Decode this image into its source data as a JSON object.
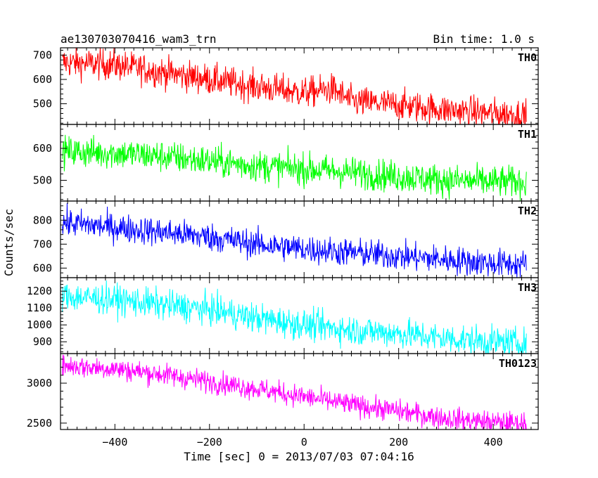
{
  "chart_data": {
    "type": "line",
    "title_left": "ae130703070416_wam3_trn",
    "title_right": "Bin time: 1.0 s",
    "xlabel": "Time [sec] 0 = 2013/07/03 07:04:16",
    "ylabel": "Counts/sec",
    "x_range": [
      -511,
      470
    ],
    "xlim": [
      -515,
      495
    ],
    "x_ticks": [
      -400,
      -200,
      0,
      200,
      400
    ],
    "x_tick_labels": [
      "−400",
      "−200",
      "0",
      "200",
      "400"
    ],
    "bin_time_s": 1.0,
    "panels": [
      {
        "name": "TH0",
        "color": "#ff0000",
        "ylim": [
          415,
          730
        ],
        "y_ticks": [
          500,
          600,
          700
        ],
        "trend": [
          [
            -511,
            670
          ],
          [
            -400,
            660
          ],
          [
            -300,
            630
          ],
          [
            -200,
            600
          ],
          [
            -100,
            570
          ],
          [
            0,
            545
          ],
          [
            60,
            560
          ],
          [
            100,
            510
          ],
          [
            200,
            495
          ],
          [
            300,
            475
          ],
          [
            400,
            460
          ],
          [
            470,
            455
          ]
        ],
        "noise": 32
      },
      {
        "name": "TH1",
        "color": "#00ff00",
        "ylim": [
          435,
          675
        ],
        "y_ticks": [
          500,
          600
        ],
        "trend": [
          [
            -511,
            590
          ],
          [
            -400,
            585
          ],
          [
            -300,
            575
          ],
          [
            -200,
            560
          ],
          [
            -100,
            545
          ],
          [
            0,
            535
          ],
          [
            100,
            525
          ],
          [
            200,
            512
          ],
          [
            300,
            500
          ],
          [
            400,
            495
          ],
          [
            470,
            495
          ]
        ],
        "noise": 25
      },
      {
        "name": "TH2",
        "color": "#0000ff",
        "ylim": [
          560,
          880
        ],
        "y_ticks": [
          600,
          700,
          800
        ],
        "trend": [
          [
            -511,
            790
          ],
          [
            -400,
            770
          ],
          [
            -300,
            750
          ],
          [
            -200,
            730
          ],
          [
            -100,
            700
          ],
          [
            0,
            680
          ],
          [
            100,
            665
          ],
          [
            200,
            650
          ],
          [
            300,
            635
          ],
          [
            400,
            620
          ],
          [
            470,
            615
          ]
        ],
        "noise": 30
      },
      {
        "name": "TH3",
        "color": "#00ffff",
        "ylim": [
          830,
          1280
        ],
        "y_ticks": [
          900,
          1000,
          1100,
          1200
        ],
        "trend": [
          [
            -511,
            1170
          ],
          [
            -400,
            1150
          ],
          [
            -300,
            1120
          ],
          [
            -200,
            1090
          ],
          [
            -100,
            1040
          ],
          [
            0,
            1000
          ],
          [
            100,
            970
          ],
          [
            200,
            950
          ],
          [
            300,
            920
          ],
          [
            400,
            900
          ],
          [
            470,
            890
          ]
        ],
        "noise": 45
      },
      {
        "name": "TH0123",
        "color": "#ff00ff",
        "ylim": [
          2420,
          3370
        ],
        "y_ticks": [
          2500,
          3000
        ],
        "trend": [
          [
            -511,
            3220
          ],
          [
            -400,
            3180
          ],
          [
            -300,
            3110
          ],
          [
            -200,
            3020
          ],
          [
            -100,
            2930
          ],
          [
            0,
            2830
          ],
          [
            100,
            2730
          ],
          [
            200,
            2650
          ],
          [
            300,
            2560
          ],
          [
            400,
            2510
          ],
          [
            470,
            2500
          ]
        ],
        "noise": 70
      }
    ]
  }
}
